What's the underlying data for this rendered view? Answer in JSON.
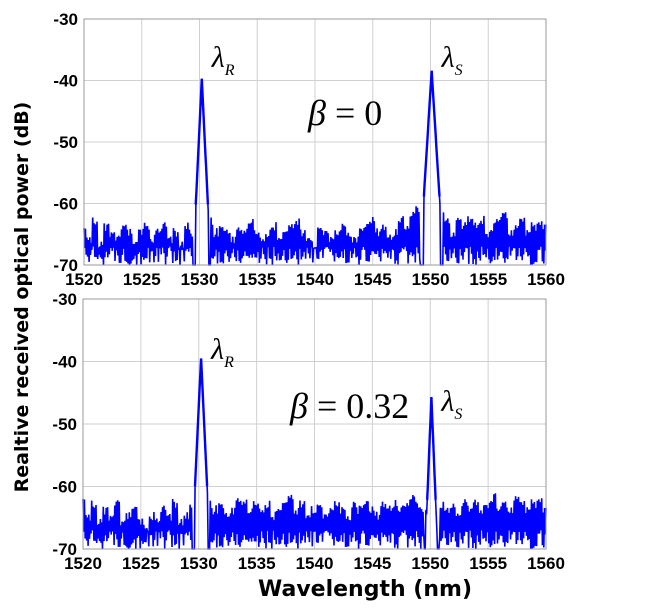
{
  "chart_data": [
    {
      "type": "line",
      "panel": "top",
      "annotation": "β = 0",
      "annotation_parts": {
        "symbol": "β",
        "eq": " = 0"
      },
      "labels": [
        {
          "text": "λ",
          "sub": "R",
          "x": 1530.2
        },
        {
          "text": "λ",
          "sub": "S",
          "x": 1550.1
        }
      ],
      "xlim": [
        1520,
        1560
      ],
      "ylim": [
        -70,
        -30
      ],
      "xticks": [
        "1520",
        "1525",
        "1530",
        "1535",
        "1540",
        "1545",
        "1550",
        "1555",
        "1560"
      ],
      "yticks": [
        "-30",
        "-40",
        "-50",
        "-60",
        "-70"
      ],
      "grid": true,
      "color": "#0000ff",
      "peaks": [
        {
          "x": 1530.2,
          "y": -39.7,
          "width": 0.35
        },
        {
          "x": 1550.1,
          "y": -38.4,
          "width": 0.45
        }
      ],
      "noise_floor": [
        -64,
        -65,
        -62,
        -66,
        -63,
        -64,
        -65,
        -63,
        -64,
        -66,
        -64,
        -63,
        -65,
        -64,
        -63,
        -65,
        -64,
        -66,
        -63,
        -64,
        -64,
        -65,
        -62,
        -64,
        -63,
        -64,
        -65,
        -63,
        -64,
        -62,
        -64,
        -65,
        -64,
        -63,
        -65,
        -64,
        -63,
        -62,
        -64,
        -65,
        -66,
        -63,
        -64,
        -65,
        -64,
        -63,
        -64,
        -65,
        -64,
        -63,
        -62,
        -64,
        -63,
        -65,
        -64,
        -62,
        -63,
        -61,
        -60,
        -62,
        -62,
        -63,
        -61,
        -62,
        -64,
        -62,
        -63,
        -62,
        -63,
        -62,
        -64,
        -63,
        -62,
        -61,
        -64,
        -63,
        -62,
        -64,
        -63,
        -62,
        -63
      ]
    },
    {
      "type": "line",
      "panel": "bottom",
      "annotation": "β = 0.32",
      "annotation_parts": {
        "symbol": "β",
        "eq": " = 0.32"
      },
      "labels": [
        {
          "text": "λ",
          "sub": "R",
          "x": 1530.2
        },
        {
          "text": "λ",
          "sub": "S",
          "x": 1550.1
        }
      ],
      "xlim": [
        1520,
        1560
      ],
      "ylim": [
        -70,
        -30
      ],
      "xticks": [
        "1520",
        "1525",
        "1530",
        "1535",
        "1540",
        "1545",
        "1550",
        "1555",
        "1560"
      ],
      "yticks": [
        "-30",
        "-40",
        "-50",
        "-60",
        "-70"
      ],
      "grid": true,
      "color": "#0000ff",
      "peaks": [
        {
          "x": 1530.2,
          "y": -39.5,
          "width": 0.35
        },
        {
          "x": 1550.1,
          "y": -45.7,
          "width": 0.3
        }
      ],
      "noise_floor": [
        -62,
        -64,
        -62,
        -65,
        -63,
        -64,
        -62,
        -65,
        -64,
        -63,
        -65,
        -66,
        -64,
        -65,
        -63,
        -64,
        -62,
        -65,
        -64,
        -62,
        -63,
        -64,
        -62,
        -63,
        -62,
        -64,
        -63,
        -61,
        -62,
        -63,
        -62,
        -63,
        -62,
        -64,
        -63,
        -62,
        -61,
        -63,
        -62,
        -64,
        -63,
        -62,
        -64,
        -63,
        -62,
        -63,
        -64,
        -62,
        -63,
        -62,
        -63,
        -64,
        -62,
        -63,
        -62,
        -63,
        -62,
        -61,
        -62,
        -63,
        -62,
        -63,
        -62,
        -63,
        -62,
        -64,
        -62,
        -63,
        -62,
        -63,
        -62,
        -61,
        -63,
        -62,
        -63,
        -61,
        -62,
        -63,
        -62,
        -61,
        -63
      ]
    }
  ],
  "xlabel": "Wavelength (nm)",
  "ylabel": "Realtive received optical power (dB)"
}
